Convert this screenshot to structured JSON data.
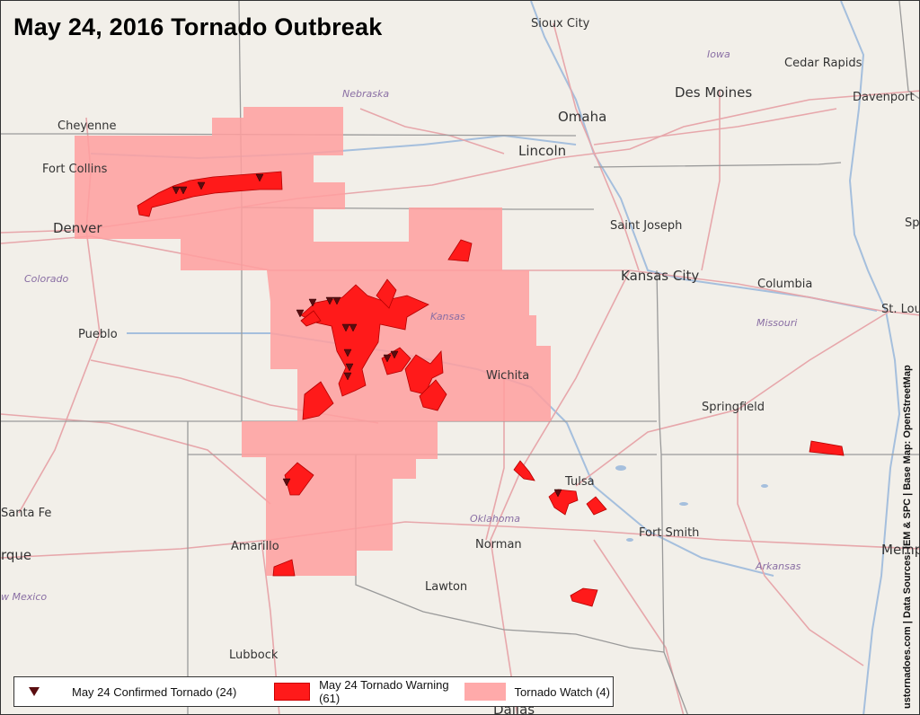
{
  "title": "May 24, 2016 Tornado Outbreak",
  "credit": "ustornadoes.com | Data Sources: IEM & SPC | Base Map: OpenStreetMap",
  "colors": {
    "land": "#f2efe9",
    "state_line": "#9e9e9e",
    "road": "#e7a7ab",
    "water": "#a5bfdd",
    "watch": "#ff9f9f",
    "warning": "#ff1a1a",
    "tornado_marker": "#5a0d10"
  },
  "cities": [
    "Sioux City",
    "Omaha",
    "Lincoln",
    "Des Moines",
    "Cedar Rapids",
    "Davenport",
    "Cheyenne",
    "Fort Collins",
    "Denver",
    "Pueblo",
    "Saint Joseph",
    "Kansas City",
    "Columbia",
    "St. Lou",
    "Wichita",
    "Springfield",
    "Tulsa",
    "Santa Fe",
    "rque",
    "Amarillo",
    "Norman",
    "Fort Smith",
    "Lawton",
    "Memp",
    "Lubbock",
    "Dallas",
    "Sp"
  ],
  "states": [
    "Iowa",
    "Nebraska",
    "Colorado",
    "Kansas",
    "Missouri",
    "Oklahoma",
    "Arkansas",
    "w Mexico"
  ],
  "legend": {
    "tornado": "May 24 Confirmed Tornado (24)",
    "warning": "May 24 Tornado Warning (61)",
    "watch": "Tornado Watch (4)"
  },
  "counts": {
    "confirmed_tornadoes": 24,
    "tornado_warnings": 61,
    "tornado_watches": 4
  }
}
